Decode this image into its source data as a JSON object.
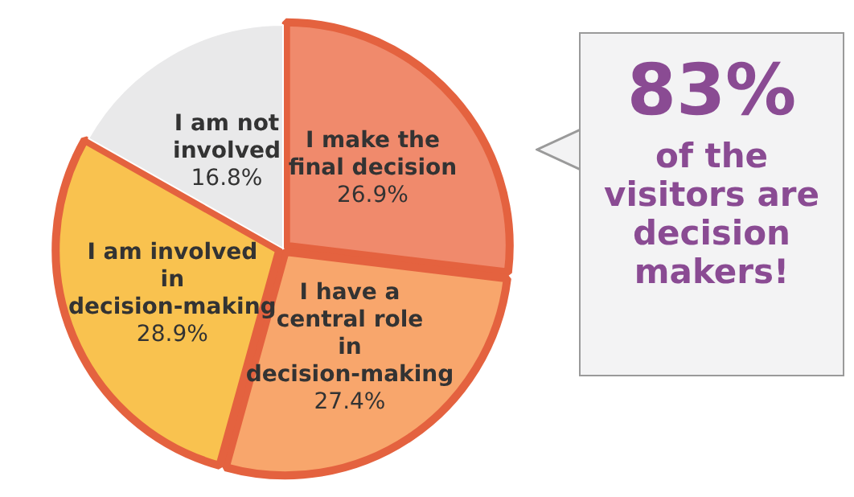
{
  "chart_data": {
    "type": "pie",
    "categories": [
      "I make the final decision",
      "I have a central role in decision-making",
      "I am involved in decision-making",
      "I am not involved"
    ],
    "values": [
      26.9,
      27.4,
      28.9,
      16.8
    ],
    "value_labels": [
      "26.9%",
      "27.4%",
      "28.9%",
      "16.8%"
    ],
    "colors": [
      "#f08a6c",
      "#f8a66c",
      "#f9c24f",
      "#e9e9ea"
    ],
    "legend": false,
    "annotations": [
      "83%",
      "of the visitors are decision makers!"
    ]
  }
}
